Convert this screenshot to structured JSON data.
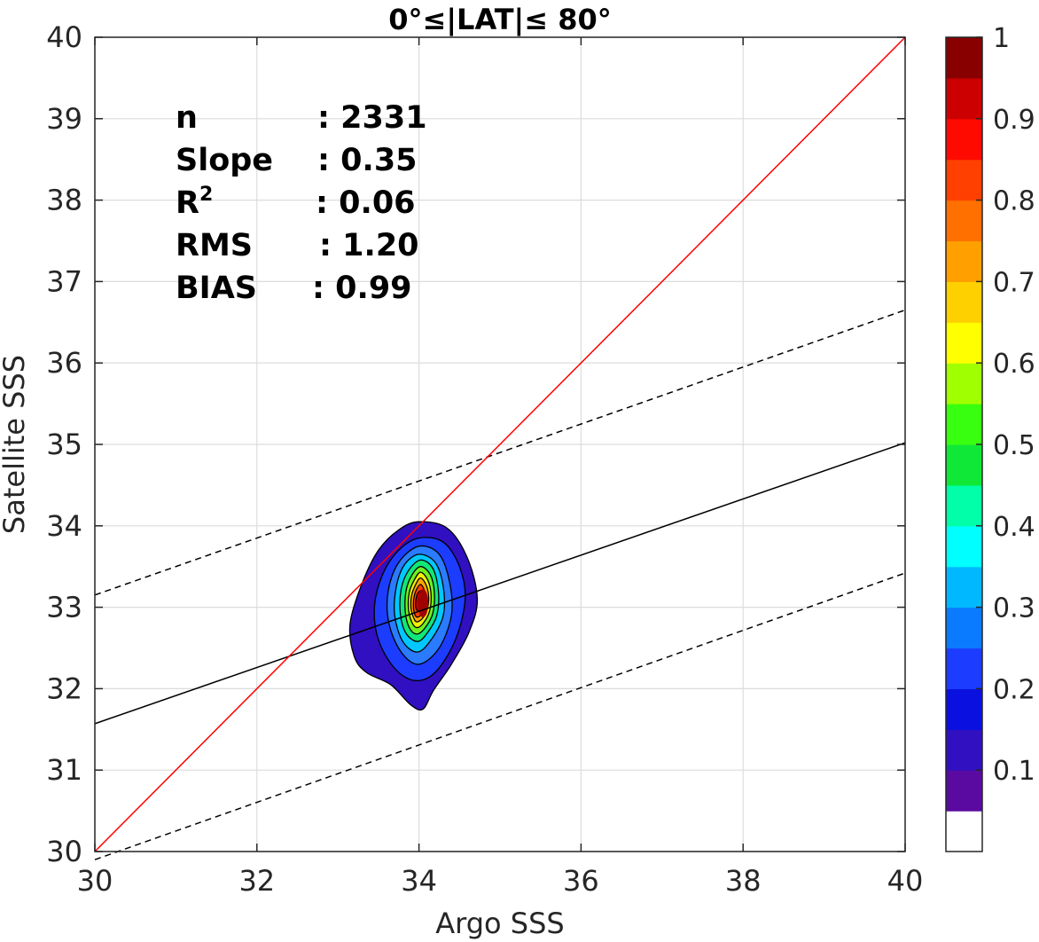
{
  "chart_data": {
    "type": "contour",
    "title": "0°≤|LAT|≤ 80°",
    "xlabel": "Argo SSS",
    "ylabel": "Satellite SSS",
    "xlim": [
      30,
      40
    ],
    "ylim": [
      30,
      40
    ],
    "x_ticks": [
      "30",
      "32",
      "34",
      "36",
      "38",
      "40"
    ],
    "y_ticks": [
      "30",
      "31",
      "32",
      "33",
      "34",
      "35",
      "36",
      "37",
      "38",
      "39",
      "40"
    ],
    "grid": true,
    "stats": [
      {
        "label": "n",
        "value": ": 2331"
      },
      {
        "label": "Slope",
        "value": ": 0.35"
      },
      {
        "label": "R",
        "sup": "2",
        "value": ": 0.06"
      },
      {
        "label": "RMS",
        "value": ": 1.20"
      },
      {
        "label": "BIAS",
        "value": ": 0.99"
      }
    ],
    "lines": {
      "one_to_one": {
        "x": [
          30,
          40
        ],
        "y": [
          30,
          40
        ],
        "color": "#ff0000"
      },
      "fit": {
        "x": [
          30,
          40
        ],
        "y": [
          31.57,
          35.02
        ],
        "color": "#000000"
      },
      "upper_bound": {
        "x": [
          30,
          40
        ],
        "y": [
          33.15,
          36.65
        ],
        "color": "#000000"
      },
      "lower_bound": {
        "x": [
          30,
          40
        ],
        "y": [
          29.9,
          33.42
        ],
        "color": "#000000"
      }
    },
    "density_center": {
      "x": 34.05,
      "y": 33.05
    },
    "contour_levels": [
      {
        "level": 0.05,
        "color": "#3010c0",
        "points": [
          [
            34.0,
            34.05
          ],
          [
            34.35,
            33.97
          ],
          [
            34.6,
            33.6
          ],
          [
            34.72,
            33.1
          ],
          [
            34.62,
            32.7
          ],
          [
            34.4,
            32.3
          ],
          [
            34.18,
            31.98
          ],
          [
            34.05,
            31.75
          ],
          [
            33.9,
            31.8
          ],
          [
            33.65,
            32.05
          ],
          [
            33.35,
            32.2
          ],
          [
            33.2,
            32.4
          ],
          [
            33.15,
            32.8
          ],
          [
            33.3,
            33.3
          ],
          [
            33.5,
            33.7
          ],
          [
            33.75,
            33.95
          ]
        ]
      },
      {
        "level": 0.15,
        "color": "#1c3cff",
        "points": [
          [
            34.0,
            33.85
          ],
          [
            34.3,
            33.8
          ],
          [
            34.5,
            33.5
          ],
          [
            34.57,
            33.1
          ],
          [
            34.45,
            32.6
          ],
          [
            34.2,
            32.2
          ],
          [
            33.95,
            32.1
          ],
          [
            33.7,
            32.25
          ],
          [
            33.5,
            32.6
          ],
          [
            33.45,
            33.0
          ],
          [
            33.55,
            33.4
          ],
          [
            33.75,
            33.7
          ]
        ]
      },
      {
        "level": 0.25,
        "color": "#2a7bff",
        "points": [
          [
            34.0,
            33.75
          ],
          [
            34.25,
            33.65
          ],
          [
            34.38,
            33.3
          ],
          [
            34.4,
            32.9
          ],
          [
            34.25,
            32.5
          ],
          [
            34.0,
            32.3
          ],
          [
            33.78,
            32.45
          ],
          [
            33.63,
            32.8
          ],
          [
            33.62,
            33.2
          ],
          [
            33.75,
            33.55
          ]
        ]
      },
      {
        "level": 0.35,
        "color": "#00c8ff",
        "points": [
          [
            34.0,
            33.65
          ],
          [
            34.2,
            33.55
          ],
          [
            34.3,
            33.25
          ],
          [
            34.3,
            32.9
          ],
          [
            34.15,
            32.6
          ],
          [
            33.98,
            32.45
          ],
          [
            33.8,
            32.58
          ],
          [
            33.7,
            32.9
          ],
          [
            33.72,
            33.25
          ],
          [
            33.82,
            33.52
          ]
        ]
      },
      {
        "level": 0.45,
        "color": "#10e878",
        "points": [
          [
            34.02,
            33.58
          ],
          [
            34.17,
            33.48
          ],
          [
            34.24,
            33.2
          ],
          [
            34.22,
            32.9
          ],
          [
            34.1,
            32.68
          ],
          [
            33.98,
            32.58
          ],
          [
            33.84,
            32.68
          ],
          [
            33.77,
            32.92
          ],
          [
            33.78,
            33.22
          ],
          [
            33.87,
            33.45
          ]
        ]
      },
      {
        "level": 0.55,
        "color": "#70f020",
        "points": [
          [
            34.02,
            33.5
          ],
          [
            34.14,
            33.4
          ],
          [
            34.19,
            33.18
          ],
          [
            34.17,
            32.92
          ],
          [
            34.07,
            32.74
          ],
          [
            33.97,
            32.67
          ],
          [
            33.88,
            32.75
          ],
          [
            33.83,
            32.95
          ],
          [
            33.84,
            33.2
          ],
          [
            33.91,
            33.39
          ]
        ]
      },
      {
        "level": 0.65,
        "color": "#f0f000",
        "points": [
          [
            34.02,
            33.43
          ],
          [
            34.11,
            33.33
          ],
          [
            34.15,
            33.15
          ],
          [
            34.13,
            32.95
          ],
          [
            34.05,
            32.8
          ],
          [
            33.97,
            32.75
          ],
          [
            33.91,
            32.82
          ],
          [
            33.87,
            32.98
          ],
          [
            33.88,
            33.18
          ],
          [
            33.94,
            33.33
          ]
        ]
      },
      {
        "level": 0.75,
        "color": "#ffa500",
        "points": [
          [
            34.02,
            33.36
          ],
          [
            34.09,
            33.27
          ],
          [
            34.12,
            33.12
          ],
          [
            34.1,
            32.97
          ],
          [
            34.04,
            32.86
          ],
          [
            33.97,
            32.82
          ],
          [
            33.93,
            32.88
          ],
          [
            33.9,
            33.0
          ],
          [
            33.91,
            33.15
          ],
          [
            33.96,
            33.28
          ]
        ]
      },
      {
        "level": 0.85,
        "color": "#ff4000",
        "points": [
          [
            34.02,
            33.28
          ],
          [
            34.07,
            33.2
          ],
          [
            34.09,
            33.08
          ],
          [
            34.07,
            32.97
          ],
          [
            34.02,
            32.9
          ],
          [
            33.97,
            32.88
          ],
          [
            33.94,
            32.94
          ],
          [
            33.93,
            33.03
          ],
          [
            33.94,
            33.13
          ],
          [
            33.97,
            33.22
          ]
        ]
      },
      {
        "level": 0.95,
        "color": "#cc0000",
        "points": [
          [
            34.03,
            33.2
          ],
          [
            34.06,
            33.13
          ],
          [
            34.07,
            33.05
          ],
          [
            34.05,
            32.98
          ],
          [
            34.01,
            32.95
          ],
          [
            33.98,
            32.96
          ],
          [
            33.96,
            33.0
          ],
          [
            33.96,
            33.07
          ],
          [
            33.97,
            33.13
          ],
          [
            33.99,
            33.18
          ]
        ]
      }
    ],
    "colorbar": {
      "ticks": [
        "0.1",
        "0.2",
        "0.3",
        "0.4",
        "0.5",
        "0.6",
        "0.7",
        "0.8",
        "0.9",
        "1"
      ],
      "colors": [
        "#ffffff",
        "#5a0aa0",
        "#3010c0",
        "#0a10e0",
        "#1c3cff",
        "#0a7aff",
        "#00b8ff",
        "#00ffff",
        "#00ffa8",
        "#10e838",
        "#38ff10",
        "#a0ff00",
        "#ffff00",
        "#ffd000",
        "#ffa000",
        "#ff7000",
        "#ff4000",
        "#ff0a00",
        "#cc0000",
        "#880000"
      ]
    }
  }
}
